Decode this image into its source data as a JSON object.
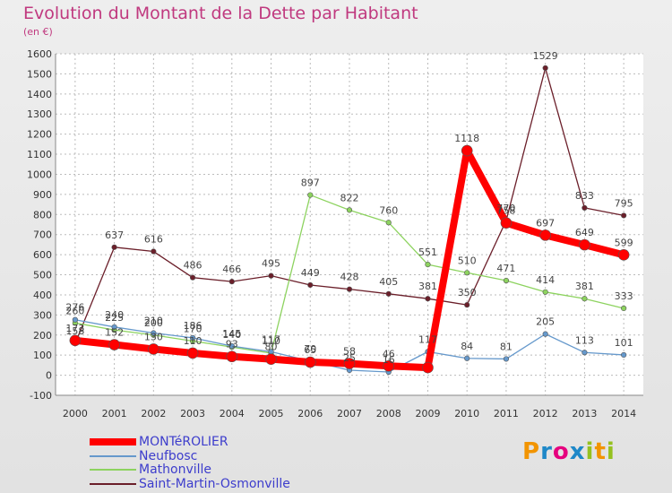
{
  "header": {
    "title": "Evolution du Montant de la Dette par Habitant",
    "unit": "(en €)"
  },
  "logo": {
    "letters": [
      {
        "ch": "P",
        "color": "#f29400"
      },
      {
        "ch": "r",
        "color": "#1e88c8"
      },
      {
        "ch": "o",
        "color": "#e6007e"
      },
      {
        "ch": "x",
        "color": "#1e88c8"
      },
      {
        "ch": "i",
        "color": "#95c11f"
      },
      {
        "ch": "t",
        "color": "#f29400"
      },
      {
        "ch": "i",
        "color": "#95c11f"
      }
    ]
  },
  "chart_data": {
    "type": "line",
    "title": "Evolution du Montant de la Dette par Habitant",
    "ylabel": "(en €)",
    "xlabel": "",
    "ylim": [
      -100,
      1600
    ],
    "yticks": [
      -100,
      0,
      100,
      200,
      300,
      400,
      500,
      600,
      700,
      800,
      900,
      1000,
      1100,
      1200,
      1300,
      1400,
      1500,
      1600
    ],
    "grid": true,
    "legend_position": "bottom-left",
    "categories": [
      "2000",
      "2001",
      "2002",
      "2003",
      "2004",
      "2005",
      "2006",
      "2007",
      "2008",
      "2009",
      "2010",
      "2011",
      "2012",
      "2013",
      "2014"
    ],
    "series": [
      {
        "name": "Saint-Martin-Osmonville",
        "color": "#6b1f2a",
        "width": 1.3,
        "marker": 2.8,
        "values": [
          158,
          637,
          616,
          486,
          466,
          495,
          449,
          428,
          405,
          381,
          350,
          770,
          1529,
          833,
          795
        ],
        "labels": [
          "158",
          "637",
          "616",
          "486",
          "466",
          "495",
          "449",
          "428",
          "405",
          "381",
          "350",
          "770",
          "1529",
          "833",
          "795"
        ]
      },
      {
        "name": "Mathonville",
        "color": "#8dd35f",
        "width": 1.3,
        "marker": 2.8,
        "values": [
          260,
          225,
          200,
          170,
          140,
          110,
          897,
          822,
          760,
          551,
          510,
          471,
          414,
          381,
          333
        ],
        "labels": [
          "260",
          "225",
          "200",
          "170",
          "140",
          "110",
          "897",
          "822",
          "760",
          "551",
          "510",
          "471",
          "414",
          "381",
          "333"
        ]
      },
      {
        "name": "Neufbosc",
        "color": "#6699cc",
        "width": 1.3,
        "marker": 2.8,
        "values": [
          276,
          240,
          210,
          186,
          145,
          117,
          70,
          25,
          16,
          117,
          84,
          81,
          205,
          113,
          101
        ],
        "labels": [
          "276",
          "240",
          "210",
          "186",
          "145",
          "117",
          "70",
          "25",
          "16",
          "117",
          "84",
          "81",
          "205",
          "113",
          "101"
        ]
      },
      {
        "name": "MONTéROLIER",
        "color": "#ff0000",
        "width": 8,
        "marker": 6,
        "values": [
          173,
          152,
          130,
          110,
          93,
          80,
          65,
          58,
          46,
          38,
          1118,
          758,
          697,
          649,
          599
        ],
        "labels": [
          "173",
          "152",
          "130",
          "110",
          "93",
          "80",
          "65",
          "58",
          "46",
          "",
          "1118",
          "758",
          "697",
          "649",
          "599"
        ]
      }
    ]
  }
}
